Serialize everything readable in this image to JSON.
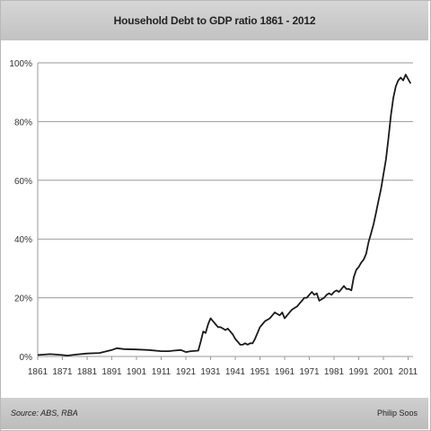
{
  "title": "Household Debt to GDP ratio 1861 - 2012",
  "footer": {
    "source": "Source: ABS, RBA",
    "author": "Philip Soos"
  },
  "colors": {
    "line": "#1a1a1a",
    "grid": "#9a9a9a",
    "header_bg": "#c8c8c8"
  },
  "chart_data": {
    "type": "line",
    "title": "Household Debt to GDP ratio 1861 - 2012",
    "xlabel": "",
    "ylabel": "",
    "xlim": [
      1861,
      2013
    ],
    "ylim": [
      0,
      100
    ],
    "grid": "horizontal",
    "x_ticks": [
      "1861",
      "1871",
      "1881",
      "1891",
      "1901",
      "1911",
      "1921",
      "1931",
      "1941",
      "1951",
      "1961",
      "1971",
      "1981",
      "1991",
      "2001",
      "2011"
    ],
    "y_ticks": [
      {
        "value": 0,
        "label": "0%"
      },
      {
        "value": 20,
        "label": "20%"
      },
      {
        "value": 40,
        "label": "40%"
      },
      {
        "value": 60,
        "label": "60%"
      },
      {
        "value": 80,
        "label": "80%"
      },
      {
        "value": 100,
        "label": "100%"
      }
    ],
    "series": [
      {
        "x": [
          1861,
          1866,
          1871,
          1873,
          1876,
          1881,
          1886,
          1889,
          1891,
          1893,
          1896,
          1901,
          1906,
          1911,
          1914,
          1916,
          1919,
          1921,
          1923,
          1926,
          1927,
          1928,
          1929,
          1930,
          1931,
          1932,
          1933,
          1934,
          1935,
          1936,
          1937,
          1938,
          1939,
          1940,
          1941,
          1942,
          1943,
          1944,
          1945,
          1946,
          1947,
          1948,
          1949,
          1950,
          1951,
          1952,
          1953,
          1954,
          1955,
          1956,
          1957,
          1958,
          1959,
          1960,
          1961,
          1962,
          1963,
          1964,
          1965,
          1966,
          1967,
          1968,
          1969,
          1970,
          1971,
          1972,
          1973,
          1974,
          1975,
          1976,
          1977,
          1978,
          1979,
          1980,
          1981,
          1982,
          1983,
          1984,
          1985,
          1986,
          1987,
          1988,
          1989,
          1990,
          1991,
          1992,
          1993,
          1994,
          1995,
          1996,
          1997,
          1998,
          1999,
          2000,
          2001,
          2002,
          2003,
          2004,
          2005,
          2006,
          2007,
          2008,
          2009,
          2010,
          2011,
          2012
        ],
        "values": [
          0.5,
          0.8,
          0.5,
          0.3,
          0.6,
          1.0,
          1.2,
          1.8,
          2.2,
          2.8,
          2.5,
          2.4,
          2.2,
          1.8,
          1.8,
          2.0,
          2.2,
          1.5,
          1.8,
          2.0,
          5.0,
          8.5,
          8.0,
          11.0,
          13.0,
          12.0,
          11.0,
          10.0,
          10.0,
          9.5,
          9.0,
          9.5,
          8.5,
          7.5,
          6.0,
          5.0,
          4.0,
          4.0,
          4.5,
          4.0,
          4.5,
          4.5,
          6.0,
          8.0,
          10.0,
          11.0,
          12.0,
          12.5,
          13.0,
          14.0,
          15.0,
          14.5,
          14.0,
          15.0,
          13.0,
          14.0,
          15.0,
          16.0,
          16.5,
          17.0,
          18.0,
          19.0,
          20.0,
          20.0,
          21.0,
          22.0,
          21.0,
          21.5,
          19.0,
          19.5,
          20.0,
          21.0,
          21.5,
          21.0,
          22.0,
          22.5,
          22.0,
          23.0,
          24.0,
          23.0,
          23.0,
          22.5,
          27.0,
          29.5,
          30.5,
          32.0,
          33.0,
          35.0,
          39.0,
          42.0,
          45.0,
          49.0,
          53.0,
          57.0,
          62.0,
          67.0,
          74.0,
          82.0,
          88.0,
          92.0,
          94.0,
          95.0,
          94.0,
          96.0,
          94.5,
          93.0
        ]
      }
    ]
  }
}
